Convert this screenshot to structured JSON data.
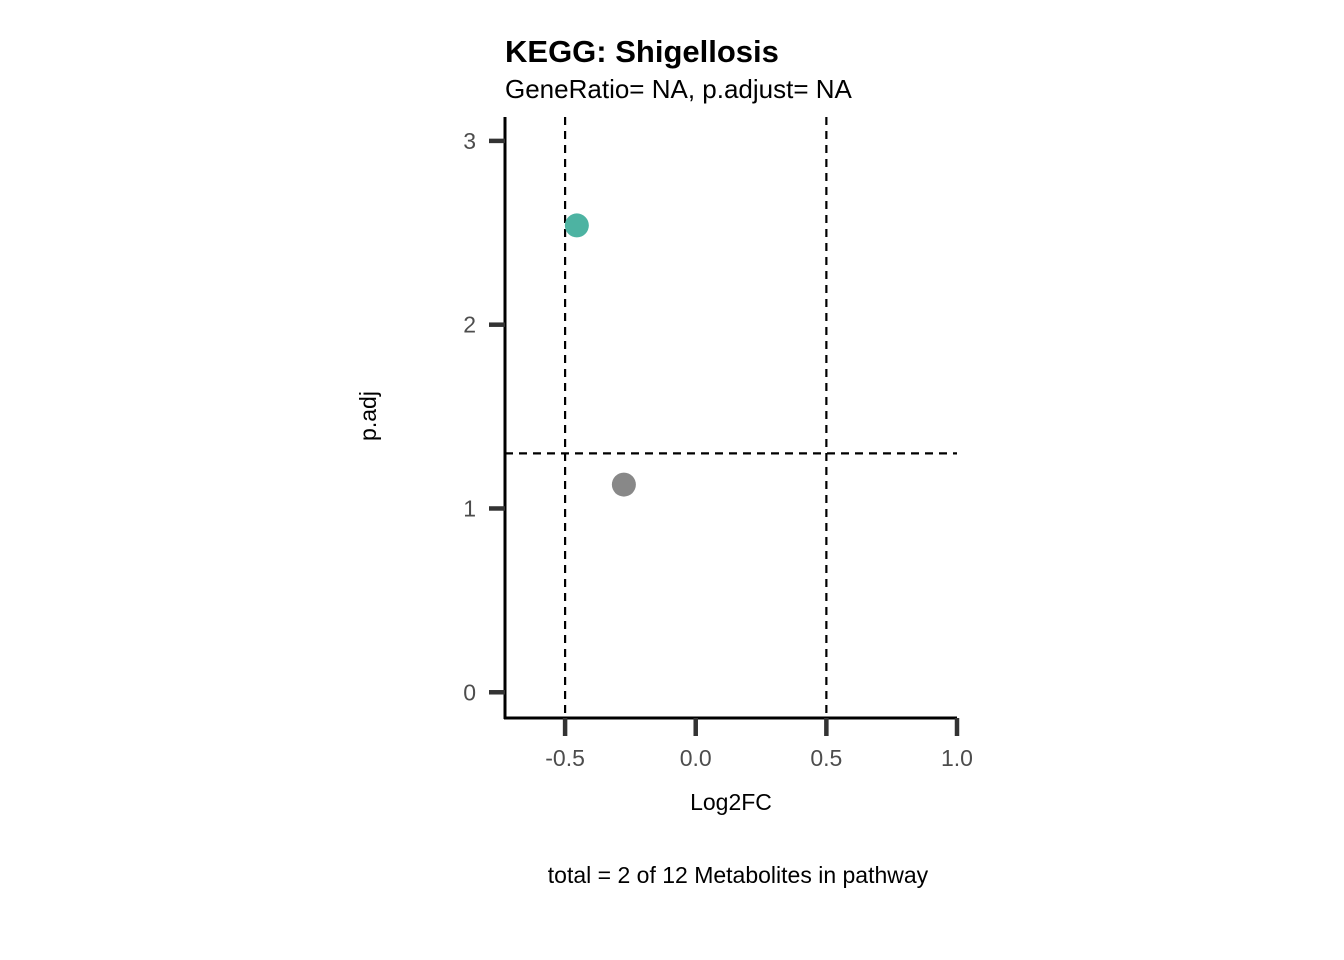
{
  "chart_data": {
    "type": "scatter",
    "title": "KEGG: Shigellosis",
    "subtitle": "GeneRatio= NA, p.adjust= NA",
    "xlabel": "Log2FC",
    "ylabel": "p.adj",
    "caption": "total = 2 of 12 Metabolites in pathway",
    "xlim": [
      -0.73,
      1.0
    ],
    "ylim": [
      -0.14,
      3.13
    ],
    "x_ticks": [
      -0.5,
      0.0,
      0.5,
      1.0
    ],
    "x_tick_labels": [
      "-0.5",
      "0.0",
      "0.5",
      "1.0"
    ],
    "y_ticks": [
      0,
      1,
      2,
      3
    ],
    "y_tick_labels": [
      "0",
      "1",
      "2",
      "3"
    ],
    "grid": false,
    "points": [
      {
        "x": -0.455,
        "y": 2.54,
        "color": "#4DB3A2"
      },
      {
        "x": -0.275,
        "y": 1.13,
        "color": "#888888"
      }
    ],
    "reference_lines": {
      "vertical": [
        -0.5,
        0.5
      ],
      "horizontal": [
        1.3
      ]
    }
  }
}
